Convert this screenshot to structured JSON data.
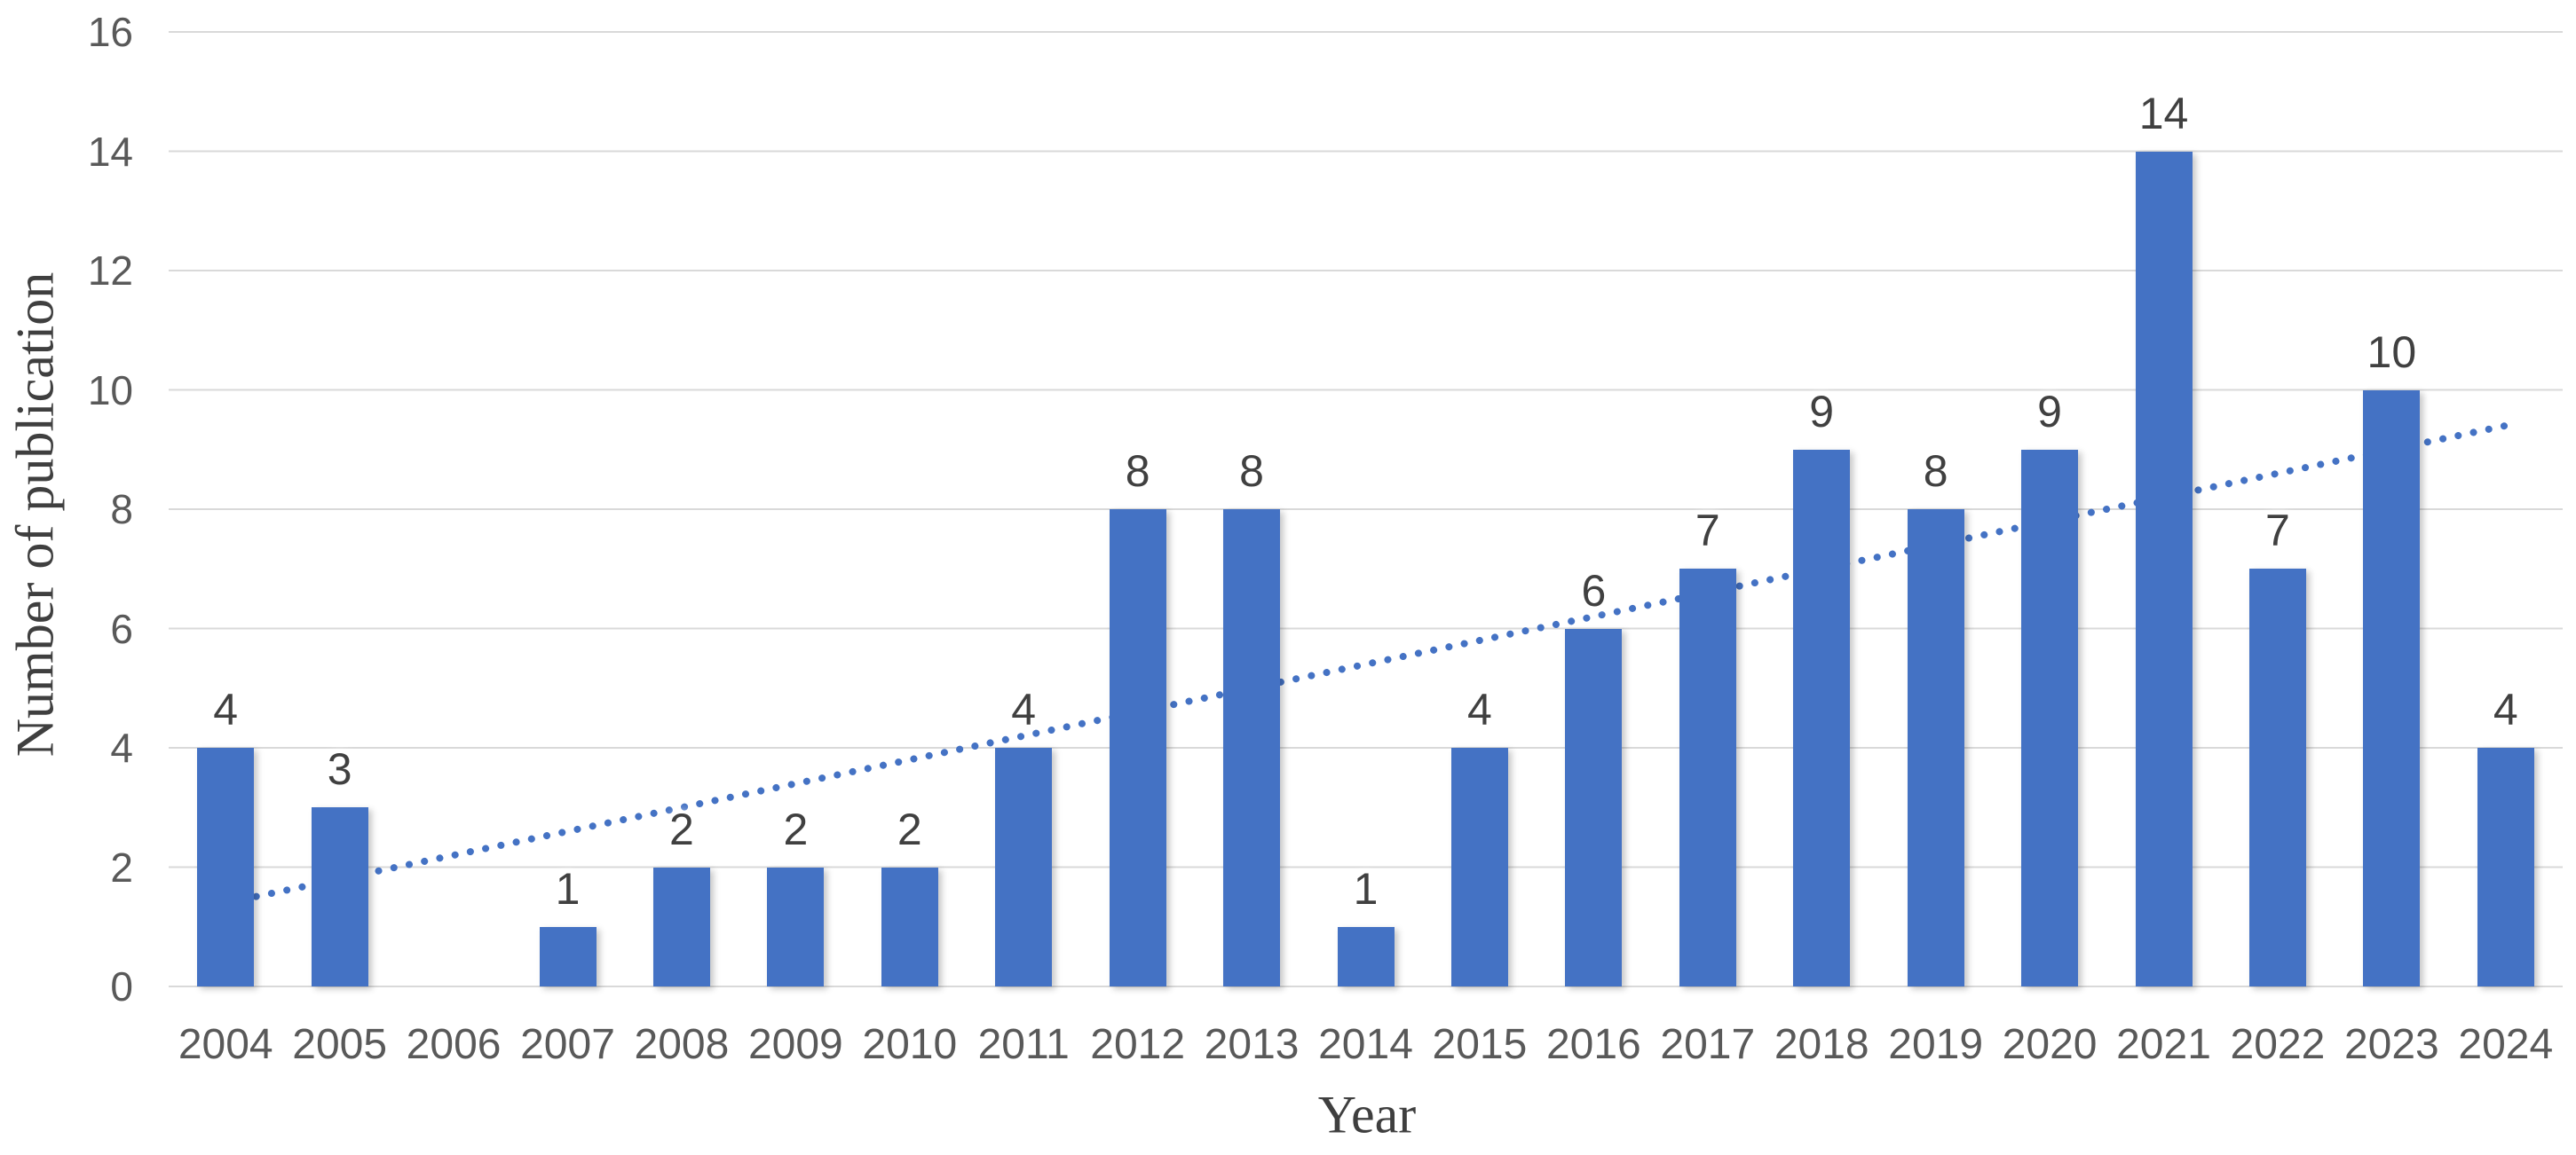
{
  "chart_data": {
    "type": "bar",
    "title": "",
    "xlabel": "Year",
    "ylabel": "Number of publication",
    "categories": [
      "2004",
      "2005",
      "2006",
      "2007",
      "2008",
      "2009",
      "2010",
      "2011",
      "2012",
      "2013",
      "2014",
      "2015",
      "2016",
      "2017",
      "2018",
      "2019",
      "2020",
      "2021",
      "2022",
      "2023",
      "2024"
    ],
    "values": [
      4,
      3,
      0,
      1,
      2,
      2,
      2,
      4,
      8,
      8,
      1,
      4,
      6,
      7,
      9,
      8,
      9,
      14,
      7,
      10,
      4
    ],
    "data_labels": [
      "4",
      "3",
      "",
      "1",
      "2",
      "2",
      "2",
      "4",
      "8",
      "8",
      "1",
      "4",
      "6",
      "7",
      "9",
      "8",
      "9",
      "14",
      "7",
      "10",
      "4"
    ],
    "ylim": [
      0,
      16
    ],
    "yticks": [
      0,
      2,
      4,
      6,
      8,
      10,
      12,
      14,
      16
    ],
    "grid": "horizontal",
    "legend": "none",
    "trendline": {
      "shape": "linear",
      "style": "dotted",
      "start_value": 1.4,
      "end_value": 9.4
    },
    "colors": {
      "bar": "#4472C4",
      "trendline": "#4472C4",
      "gridline": "#D9D9D9",
      "tick_text": "#595959",
      "data_label_text": "#404040",
      "axis_title_text": "#3F3F3F"
    }
  }
}
